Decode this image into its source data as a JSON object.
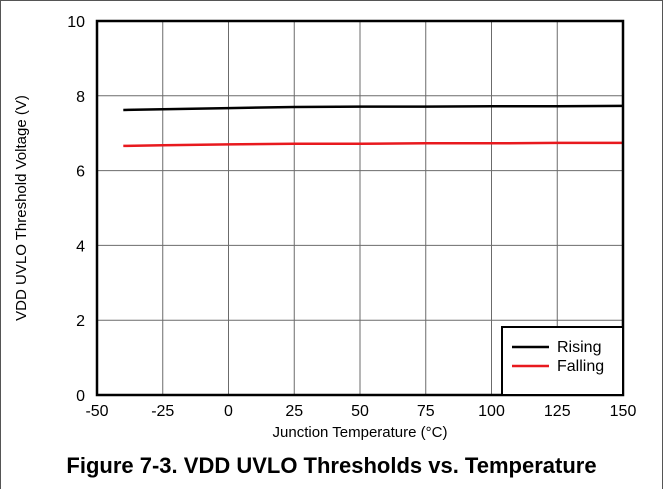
{
  "caption": "Figure 7-3. VDD UVLO Thresholds vs. Temperature",
  "chart_data": {
    "type": "line",
    "title": "",
    "xlabel": "Junction Temperature (°C)",
    "ylabel": "VDD UVLO Threshold Voltage (V)",
    "xlim": [
      -50,
      150
    ],
    "ylim": [
      0,
      10
    ],
    "xticks": [
      -50,
      -25,
      0,
      25,
      50,
      75,
      100,
      125,
      150
    ],
    "yticks": [
      0,
      2,
      4,
      6,
      8,
      10
    ],
    "grid": true,
    "legend_position": "bottom-right",
    "series": [
      {
        "name": "Rising",
        "color": "#000000",
        "x": [
          -40,
          -25,
          0,
          25,
          50,
          75,
          100,
          125,
          150
        ],
        "y": [
          7.62,
          7.64,
          7.67,
          7.7,
          7.71,
          7.71,
          7.72,
          7.72,
          7.73
        ]
      },
      {
        "name": "Falling",
        "color": "#e8191e",
        "x": [
          -40,
          -25,
          0,
          25,
          50,
          75,
          100,
          125,
          150
        ],
        "y": [
          6.66,
          6.68,
          6.7,
          6.72,
          6.72,
          6.73,
          6.73,
          6.74,
          6.74
        ]
      }
    ]
  }
}
